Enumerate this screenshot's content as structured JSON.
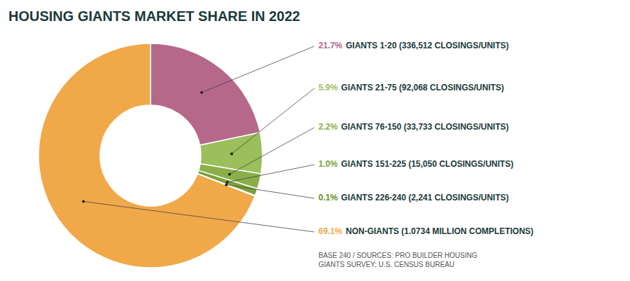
{
  "chart_data": {
    "type": "pie",
    "title": "HOUSING GIANTS MARKET SHARE IN 2022",
    "categories": [
      "GIANTS 1-20 (336,512 CLOSINGS/UNITS)",
      "GIANTS 21-75 (92,068 CLOSINGS/UNITS)",
      "GIANTS 76-150 (33,733 CLOSINGS/UNITS)",
      "GIANTS 151-225 (15,050 CLOSINGS/UNITS)",
      "GIANTS 226-240 (2,241 CLOSINGS/UNITS)",
      "NON-GIANTS (1.0734 MILLION COMPLETIONS)"
    ],
    "values": [
      21.7,
      5.9,
      2.2,
      1.0,
      0.1,
      69.1
    ],
    "value_labels": [
      "21.7%",
      "5.9%",
      "2.2%",
      "1.0%",
      "0.1%",
      "69.1%"
    ],
    "colors": [
      "#b5688a",
      "#9bbf5a",
      "#8aaf48",
      "#7a9f38",
      "#6a8f28",
      "#f0a848"
    ],
    "data_labels": true,
    "annotations": [
      "BASE 240 / SOURCES: PRO BUILDER HOUSING\nGIANTS SURVEY; U.S. CENSUS BUREAU"
    ]
  }
}
